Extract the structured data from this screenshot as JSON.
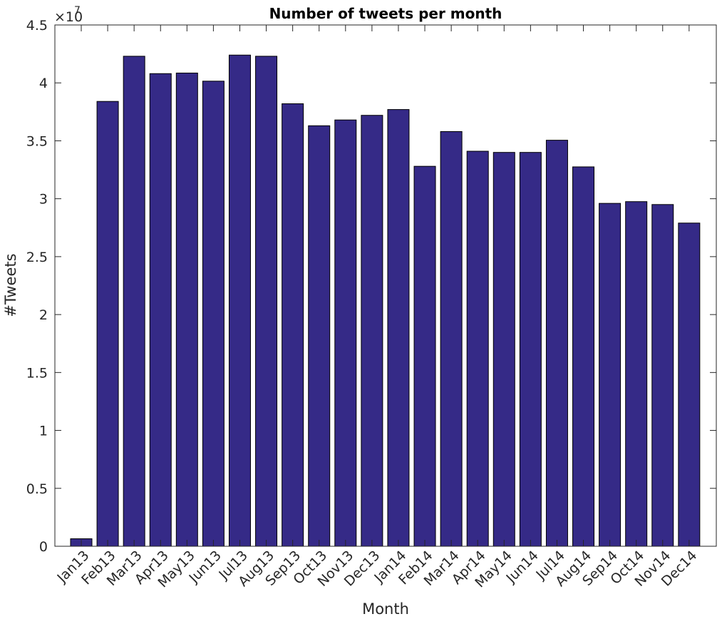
{
  "chart_data": {
    "type": "bar",
    "title": "Number of tweets per month",
    "xlabel": "Month",
    "ylabel": "#Tweets",
    "ylim": [
      0,
      45000000
    ],
    "yticks": [
      0,
      5000000,
      10000000,
      15000000,
      20000000,
      25000000,
      30000000,
      35000000,
      40000000,
      45000000
    ],
    "ytick_labels": [
      "0",
      "0.5",
      "1",
      "1.5",
      "2",
      "2.5",
      "3",
      "3.5",
      "4",
      "4.5"
    ],
    "y_exponent_label": "×10",
    "y_exponent_power": "7",
    "categories": [
      "Jan13",
      "Feb13",
      "Mar13",
      "Apr13",
      "May13",
      "Jun13",
      "Jul13",
      "Aug13",
      "Sep13",
      "Oct13",
      "Nov13",
      "Dec13",
      "Jan14",
      "Feb14",
      "Mar14",
      "Apr14",
      "May14",
      "Jun14",
      "Jul14",
      "Aug14",
      "Sep14",
      "Oct14",
      "Nov14",
      "Dec14"
    ],
    "values": [
      650000,
      38400000,
      42300000,
      40800000,
      40850000,
      40150000,
      42400000,
      42300000,
      38200000,
      36300000,
      36800000,
      37200000,
      37700000,
      32800000,
      35800000,
      34100000,
      34000000,
      34000000,
      35050000,
      32750000,
      29600000,
      29750000,
      29500000,
      27900000
    ],
    "bar_color": "#352a87",
    "grid": false,
    "legend": "none"
  }
}
